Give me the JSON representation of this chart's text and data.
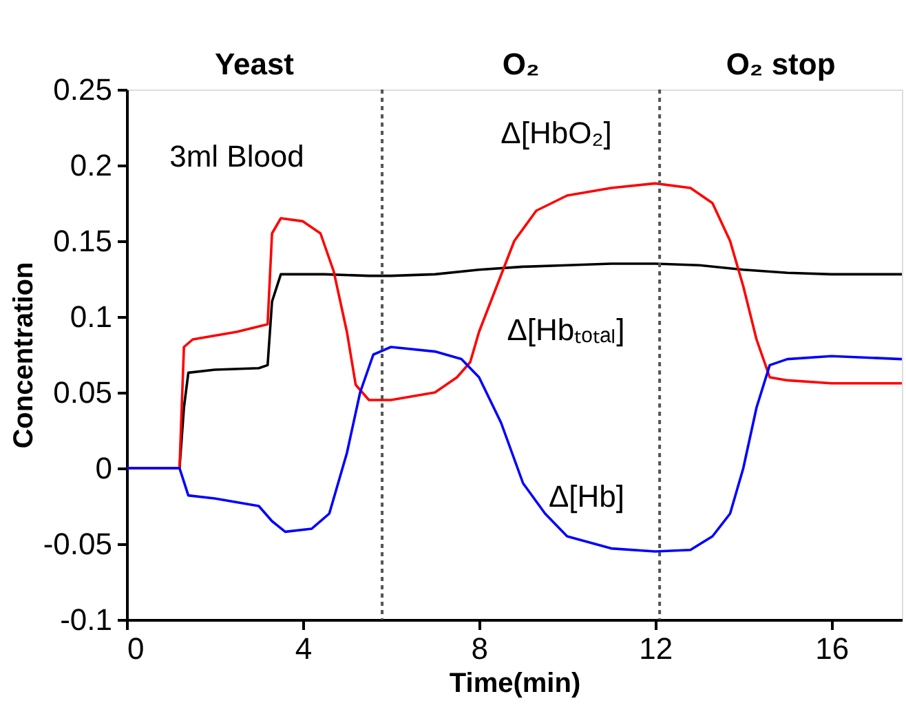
{
  "chart_data": {
    "type": "line",
    "xlabel": "Time(min)",
    "ylabel": "Concentration",
    "xlim": [
      0,
      17.6
    ],
    "ylim": [
      -0.1,
      0.25
    ],
    "xticks": [
      0,
      4,
      8,
      12,
      16
    ],
    "yticks": [
      -0.1,
      -0.05,
      0,
      0.05,
      0.1,
      0.15,
      0.2,
      0.25
    ],
    "grid": false,
    "marker": "none",
    "line_style": "solid",
    "series": [
      {
        "color": "#000000",
        "x": [
          0,
          1.2,
          1.3,
          1.4,
          2,
          3,
          3.2,
          3.3,
          3.5,
          4.5,
          5.5,
          6,
          7,
          8,
          9,
          10,
          11,
          12,
          13,
          14,
          15,
          16,
          17.6
        ],
        "values": [
          0,
          0,
          0.04,
          0.063,
          0.065,
          0.066,
          0.068,
          0.11,
          0.128,
          0.128,
          0.127,
          0.127,
          0.128,
          0.131,
          0.133,
          0.134,
          0.135,
          0.135,
          0.134,
          0.131,
          0.129,
          0.128,
          0.128
        ]
      },
      {
        "color": "#ff0000",
        "x": [
          0,
          1.2,
          1.3,
          1.5,
          2.5,
          3.2,
          3.3,
          3.5,
          4,
          4.4,
          4.7,
          5,
          5.2,
          5.5,
          6,
          7,
          7.5,
          7.8,
          8,
          8.4,
          8.8,
          9.3,
          10,
          11,
          12,
          12.8,
          13.3,
          13.7,
          14,
          14.3,
          14.6,
          15,
          16,
          17.6
        ],
        "values": [
          0,
          0,
          0.08,
          0.085,
          0.09,
          0.095,
          0.155,
          0.165,
          0.163,
          0.155,
          0.13,
          0.09,
          0.055,
          0.045,
          0.045,
          0.05,
          0.06,
          0.07,
          0.09,
          0.12,
          0.15,
          0.17,
          0.18,
          0.185,
          0.188,
          0.185,
          0.175,
          0.15,
          0.12,
          0.085,
          0.06,
          0.058,
          0.056,
          0.056
        ]
      },
      {
        "color": "#0000ff",
        "x": [
          0,
          1.2,
          1.4,
          2,
          3,
          3.3,
          3.6,
          4.2,
          4.6,
          5,
          5.3,
          5.6,
          6,
          7,
          7.6,
          8,
          8.5,
          9,
          9.5,
          10,
          11,
          12,
          12.8,
          13.3,
          13.7,
          14,
          14.3,
          14.6,
          15,
          16,
          17.6
        ],
        "values": [
          0,
          0,
          -0.018,
          -0.02,
          -0.025,
          -0.035,
          -0.042,
          -0.04,
          -0.03,
          0.01,
          0.05,
          0.075,
          0.08,
          0.077,
          0.072,
          0.06,
          0.03,
          -0.01,
          -0.03,
          -0.045,
          -0.053,
          -0.055,
          -0.054,
          -0.045,
          -0.03,
          0,
          0.04,
          0.068,
          0.072,
          0.074,
          0.072
        ]
      }
    ],
    "ref_lines": [
      {
        "axis": "x",
        "value": 5.8,
        "color": "#555555",
        "line_style": "dotted"
      },
      {
        "axis": "x",
        "value": 12.1,
        "color": "#555555",
        "line_style": "dotted"
      }
    ],
    "annotations": [
      "Yeast",
      "O₂",
      "O₂  stop",
      "3ml Blood",
      "Δ[HbO₂]",
      "Δ[Hbₜₒₜₐₗ]",
      "Δ[Hb]"
    ]
  }
}
